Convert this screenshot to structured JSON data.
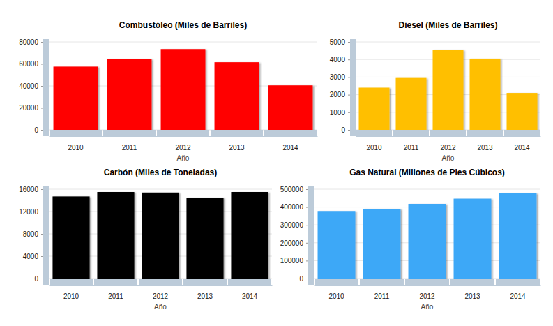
{
  "chart_data": [
    {
      "type": "bar",
      "title": "Combustóleo (Miles de Barriles)",
      "x_label": "Año",
      "categories": [
        "2010",
        "2011",
        "2012",
        "2013",
        "2014"
      ],
      "values": [
        57500,
        64500,
        73500,
        61500,
        40500
      ],
      "color": "#ff0000",
      "ylim": [
        0,
        80000
      ],
      "yticks": [
        0,
        20000,
        40000,
        60000,
        80000
      ],
      "grid": true
    },
    {
      "type": "bar",
      "title": "Diesel (Miles de Barriles)",
      "x_label": "Año",
      "categories": [
        "2010",
        "2011",
        "2012",
        "2013",
        "2014"
      ],
      "values": [
        2400,
        2950,
        4550,
        4050,
        2100
      ],
      "color": "#ffbf00",
      "ylim": [
        0,
        5000
      ],
      "yticks": [
        0,
        1000,
        2000,
        3000,
        4000,
        5000
      ],
      "grid": true
    },
    {
      "type": "bar",
      "title": "Carbón (Miles de Toneladas)",
      "x_label": "Año",
      "categories": [
        "2010",
        "2011",
        "2012",
        "2013",
        "2014"
      ],
      "values": [
        14700,
        15500,
        15400,
        14500,
        15500
      ],
      "color": "#000000",
      "ylim": [
        0,
        16000
      ],
      "yticks": [
        0,
        4000,
        8000,
        12000,
        16000
      ],
      "grid": true
    },
    {
      "type": "bar",
      "title": "Gas Natural (Millones de Pies Cúbicos)",
      "x_label": "Año",
      "categories": [
        "2010",
        "2011",
        "2012",
        "2013",
        "2014"
      ],
      "values": [
        378000,
        390000,
        418000,
        447000,
        478000
      ],
      "color": "#3ea8f7",
      "ylim": [
        0,
        500000
      ],
      "yticks": [
        0,
        100000,
        200000,
        300000,
        400000,
        500000
      ],
      "grid": true
    }
  ]
}
